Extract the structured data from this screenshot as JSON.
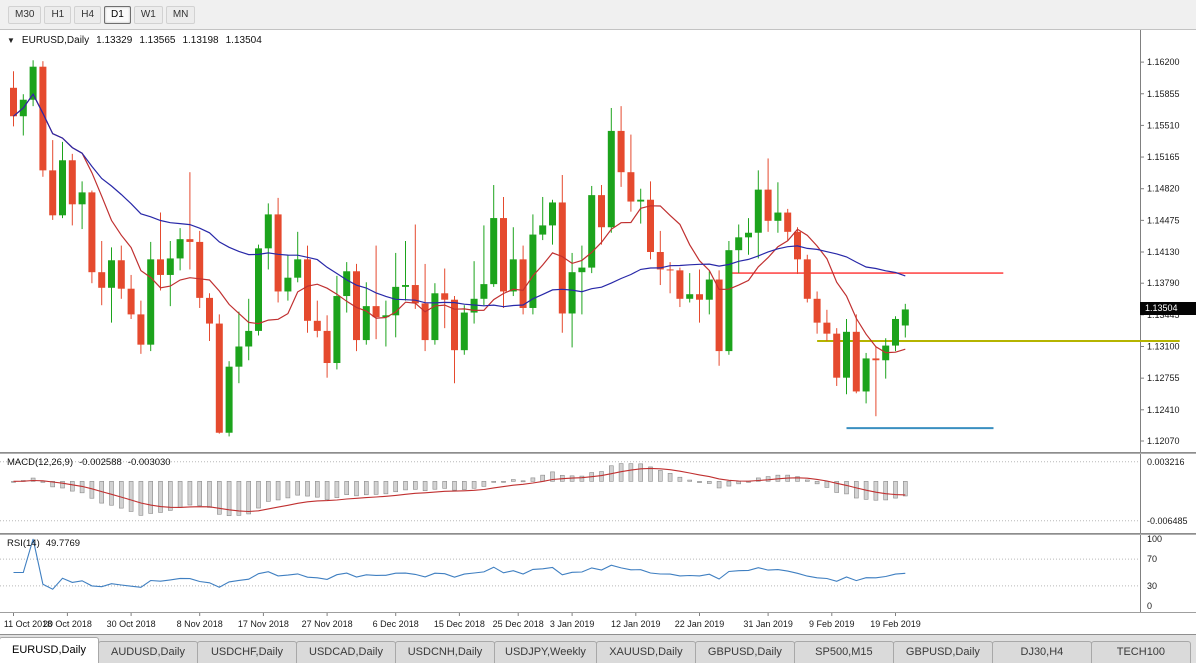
{
  "toolbar": {
    "timeframes": [
      {
        "label": "M30",
        "active": false
      },
      {
        "label": "H1",
        "active": false
      },
      {
        "label": "H4",
        "active": false
      },
      {
        "label": "D1",
        "active": true
      },
      {
        "label": "W1",
        "active": false
      },
      {
        "label": "MN",
        "active": false
      }
    ]
  },
  "chart_title": {
    "dropdown_icon": "▼",
    "symbol": "EURUSD,Daily",
    "open": "1.13329",
    "high": "1.13565",
    "low": "1.13198",
    "close": "1.13504"
  },
  "chart_data": {
    "type": "candlestick",
    "title": "EURUSD,Daily",
    "candle_colors": {
      "up": "#1ca31c",
      "down": "#e54a2e"
    },
    "y_axis_labels": [
      "1.16200",
      "1.15855",
      "1.15510",
      "1.15165",
      "1.14820",
      "1.14475",
      "1.14130",
      "1.13790",
      "1.13445",
      "1.13100",
      "1.12755",
      "1.12410",
      "1.12070"
    ],
    "y_range": {
      "max": 1.1655,
      "min": 1.1195
    },
    "current_price": "1.13504",
    "x_ticks": [
      {
        "label": "11 Oct 2018",
        "bar": 0
      },
      {
        "label": "20 Oct 2018",
        "bar": 5.5
      },
      {
        "label": "30 Oct 2018",
        "bar": 12
      },
      {
        "label": "8 Nov 2018",
        "bar": 19
      },
      {
        "label": "17 Nov 2018",
        "bar": 25.5
      },
      {
        "label": "27 Nov 2018",
        "bar": 32
      },
      {
        "label": "6 Dec 2018",
        "bar": 39
      },
      {
        "label": "15 Dec 2018",
        "bar": 45.5
      },
      {
        "label": "25 Dec 2018",
        "bar": 51.5
      },
      {
        "label": "3 Jan 2019",
        "bar": 57
      },
      {
        "label": "12 Jan 2019",
        "bar": 63.5
      },
      {
        "label": "22 Jan 2019",
        "bar": 70
      },
      {
        "label": "31 Jan 2019",
        "bar": 77
      },
      {
        "label": "9 Feb 2019",
        "bar": 83.5
      },
      {
        "label": "19 Feb 2019",
        "bar": 90
      }
    ],
    "moving_averages": [
      {
        "name": "ma-fast",
        "period": 8,
        "color": "#c03030"
      },
      {
        "name": "ma-slow",
        "period": 32,
        "color": "#2828a8"
      }
    ],
    "hlines": [
      {
        "name": "resistance-line",
        "color": "#ff2d2d",
        "price": 1.139,
        "from_bar": 73,
        "to_bar": 101,
        "width": 1.4
      },
      {
        "name": "breakout-line",
        "color": "#b5b400",
        "price": 1.1316,
        "from_bar": 82,
        "to_bar": 119,
        "width": 2
      },
      {
        "name": "support-line",
        "color": "#3a8fc0",
        "price": 1.1221,
        "from_bar": 85,
        "to_bar": 100,
        "width": 2
      }
    ],
    "ohlc": [
      [
        1.1592,
        1.161,
        1.155,
        1.1561
      ],
      [
        1.1561,
        1.1585,
        1.154,
        1.1579
      ],
      [
        1.1579,
        1.1622,
        1.1572,
        1.1615
      ],
      [
        1.1615,
        1.1621,
        1.1495,
        1.1502
      ],
      [
        1.1502,
        1.1535,
        1.1448,
        1.1453
      ],
      [
        1.1453,
        1.1533,
        1.145,
        1.1513
      ],
      [
        1.1513,
        1.152,
        1.1442,
        1.1465
      ],
      [
        1.1465,
        1.149,
        1.1438,
        1.1478
      ],
      [
        1.1478,
        1.148,
        1.1379,
        1.1391
      ],
      [
        1.1391,
        1.1425,
        1.1355,
        1.1374
      ],
      [
        1.1374,
        1.1418,
        1.1336,
        1.1404
      ],
      [
        1.1404,
        1.142,
        1.1362,
        1.1373
      ],
      [
        1.1373,
        1.1388,
        1.134,
        1.1345
      ],
      [
        1.1345,
        1.136,
        1.1302,
        1.1312
      ],
      [
        1.1312,
        1.1424,
        1.1305,
        1.1405
      ],
      [
        1.1405,
        1.1456,
        1.1371,
        1.1388
      ],
      [
        1.1388,
        1.1425,
        1.1354,
        1.1406
      ],
      [
        1.1406,
        1.1439,
        1.1393,
        1.1427
      ],
      [
        1.1427,
        1.15,
        1.1394,
        1.1424
      ],
      [
        1.1424,
        1.1436,
        1.1352,
        1.1363
      ],
      [
        1.1363,
        1.1368,
        1.1316,
        1.1335
      ],
      [
        1.1335,
        1.1345,
        1.1215,
        1.1216
      ],
      [
        1.1216,
        1.1294,
        1.1212,
        1.1288
      ],
      [
        1.1288,
        1.1348,
        1.127,
        1.131
      ],
      [
        1.131,
        1.1362,
        1.1295,
        1.1327
      ],
      [
        1.1327,
        1.1421,
        1.1322,
        1.1417
      ],
      [
        1.1417,
        1.1466,
        1.1394,
        1.1454
      ],
      [
        1.1454,
        1.1472,
        1.1358,
        1.137
      ],
      [
        1.137,
        1.141,
        1.136,
        1.1385
      ],
      [
        1.1385,
        1.1435,
        1.138,
        1.1405
      ],
      [
        1.1405,
        1.142,
        1.1325,
        1.1338
      ],
      [
        1.1338,
        1.136,
        1.132,
        1.1327
      ],
      [
        1.1327,
        1.1344,
        1.1276,
        1.1292
      ],
      [
        1.1292,
        1.1387,
        1.1285,
        1.1365
      ],
      [
        1.1365,
        1.1402,
        1.1347,
        1.1392
      ],
      [
        1.1392,
        1.14,
        1.1305,
        1.1317
      ],
      [
        1.1317,
        1.138,
        1.1312,
        1.1354
      ],
      [
        1.1354,
        1.142,
        1.1318,
        1.1342
      ],
      [
        1.1342,
        1.136,
        1.131,
        1.1344
      ],
      [
        1.1344,
        1.1412,
        1.132,
        1.1375
      ],
      [
        1.1375,
        1.1425,
        1.136,
        1.1377
      ],
      [
        1.1377,
        1.1443,
        1.1351,
        1.1357
      ],
      [
        1.1357,
        1.14,
        1.1305,
        1.1317
      ],
      [
        1.1317,
        1.1379,
        1.1312,
        1.1368
      ],
      [
        1.1368,
        1.1395,
        1.133,
        1.1361
      ],
      [
        1.1361,
        1.1365,
        1.127,
        1.1306
      ],
      [
        1.1306,
        1.1355,
        1.1301,
        1.1347
      ],
      [
        1.1347,
        1.1403,
        1.1335,
        1.1362
      ],
      [
        1.1362,
        1.1442,
        1.1355,
        1.1378
      ],
      [
        1.1378,
        1.1486,
        1.1375,
        1.145
      ],
      [
        1.145,
        1.1473,
        1.1352,
        1.137
      ],
      [
        1.137,
        1.144,
        1.1365,
        1.1405
      ],
      [
        1.1405,
        1.142,
        1.1345,
        1.1352
      ],
      [
        1.1352,
        1.1454,
        1.1345,
        1.1432
      ],
      [
        1.1432,
        1.1473,
        1.1426,
        1.1442
      ],
      [
        1.1442,
        1.147,
        1.1421,
        1.1467
      ],
      [
        1.1467,
        1.1497,
        1.1325,
        1.1346
      ],
      [
        1.1346,
        1.1412,
        1.1309,
        1.1391
      ],
      [
        1.1391,
        1.142,
        1.1345,
        1.1396
      ],
      [
        1.1396,
        1.1485,
        1.139,
        1.1475
      ],
      [
        1.1475,
        1.1486,
        1.1421,
        1.144
      ],
      [
        1.144,
        1.157,
        1.1434,
        1.1545
      ],
      [
        1.1545,
        1.1572,
        1.1484,
        1.15
      ],
      [
        1.15,
        1.1541,
        1.1457,
        1.1468
      ],
      [
        1.1468,
        1.1482,
        1.1444,
        1.147
      ],
      [
        1.147,
        1.149,
        1.1405,
        1.1413
      ],
      [
        1.1413,
        1.1436,
        1.1377,
        1.1394
      ],
      [
        1.1394,
        1.1402,
        1.1368,
        1.1393
      ],
      [
        1.1393,
        1.1396,
        1.1353,
        1.1362
      ],
      [
        1.1362,
        1.139,
        1.1358,
        1.1367
      ],
      [
        1.1367,
        1.1394,
        1.1336,
        1.1361
      ],
      [
        1.1361,
        1.1392,
        1.1345,
        1.1383
      ],
      [
        1.1383,
        1.1393,
        1.1289,
        1.1305
      ],
      [
        1.1305,
        1.1425,
        1.1301,
        1.1415
      ],
      [
        1.1415,
        1.1443,
        1.139,
        1.1429
      ],
      [
        1.1429,
        1.145,
        1.141,
        1.1434
      ],
      [
        1.1434,
        1.1502,
        1.1406,
        1.1481
      ],
      [
        1.1481,
        1.1515,
        1.1435,
        1.1447
      ],
      [
        1.1447,
        1.1489,
        1.1434,
        1.1456
      ],
      [
        1.1456,
        1.146,
        1.1425,
        1.1435
      ],
      [
        1.1435,
        1.144,
        1.1389,
        1.1405
      ],
      [
        1.1405,
        1.141,
        1.1358,
        1.1362
      ],
      [
        1.1362,
        1.137,
        1.1324,
        1.1336
      ],
      [
        1.1336,
        1.135,
        1.1316,
        1.1324
      ],
      [
        1.1324,
        1.133,
        1.1267,
        1.1276
      ],
      [
        1.1276,
        1.134,
        1.1258,
        1.1326
      ],
      [
        1.1326,
        1.1345,
        1.1259,
        1.1261
      ],
      [
        1.1261,
        1.1303,
        1.1248,
        1.1297
      ],
      [
        1.1297,
        1.131,
        1.1234,
        1.1295
      ],
      [
        1.1295,
        1.1319,
        1.1275,
        1.1311
      ],
      [
        1.1311,
        1.1343,
        1.1305,
        1.134
      ],
      [
        1.13329,
        1.13565,
        1.13198,
        1.13504
      ]
    ]
  },
  "macd": {
    "name": "MACD(12,26,9)",
    "value_main": "-0.002588",
    "value_signal": "-0.003030",
    "axis_labels": [
      "0.003216",
      "-0.006485"
    ],
    "range": {
      "max": 0.0045,
      "min": -0.0085
    },
    "fast": 12,
    "slow": 26,
    "signal": 9,
    "hist_fill": "#d2d2d2",
    "hist_stroke": "#8a8a8a",
    "signal_color": "#c03030"
  },
  "rsi": {
    "name": "RSI(14)",
    "value": "49.7769",
    "axis_labels": [
      "100",
      "70",
      "30",
      "0"
    ],
    "levels": [
      70,
      30
    ],
    "period": 14,
    "color": "#3f7fc1"
  },
  "tabs": [
    {
      "label": "EURUSD,Daily",
      "active": true
    },
    {
      "label": "AUDUSD,Daily",
      "active": false
    },
    {
      "label": "USDCHF,Daily",
      "active": false
    },
    {
      "label": "USDCAD,Daily",
      "active": false
    },
    {
      "label": "USDCNH,Daily",
      "active": false
    },
    {
      "label": "USDJPY,Weekly",
      "active": false
    },
    {
      "label": "XAUUSD,Daily",
      "active": false
    },
    {
      "label": "GBPUSD,Daily",
      "active": false
    },
    {
      "label": "SP500,M15",
      "active": false
    },
    {
      "label": "GBPUSD,Daily",
      "active": false
    },
    {
      "label": "DJ30,H4",
      "active": false
    },
    {
      "label": "TECH100",
      "active": false
    }
  ]
}
